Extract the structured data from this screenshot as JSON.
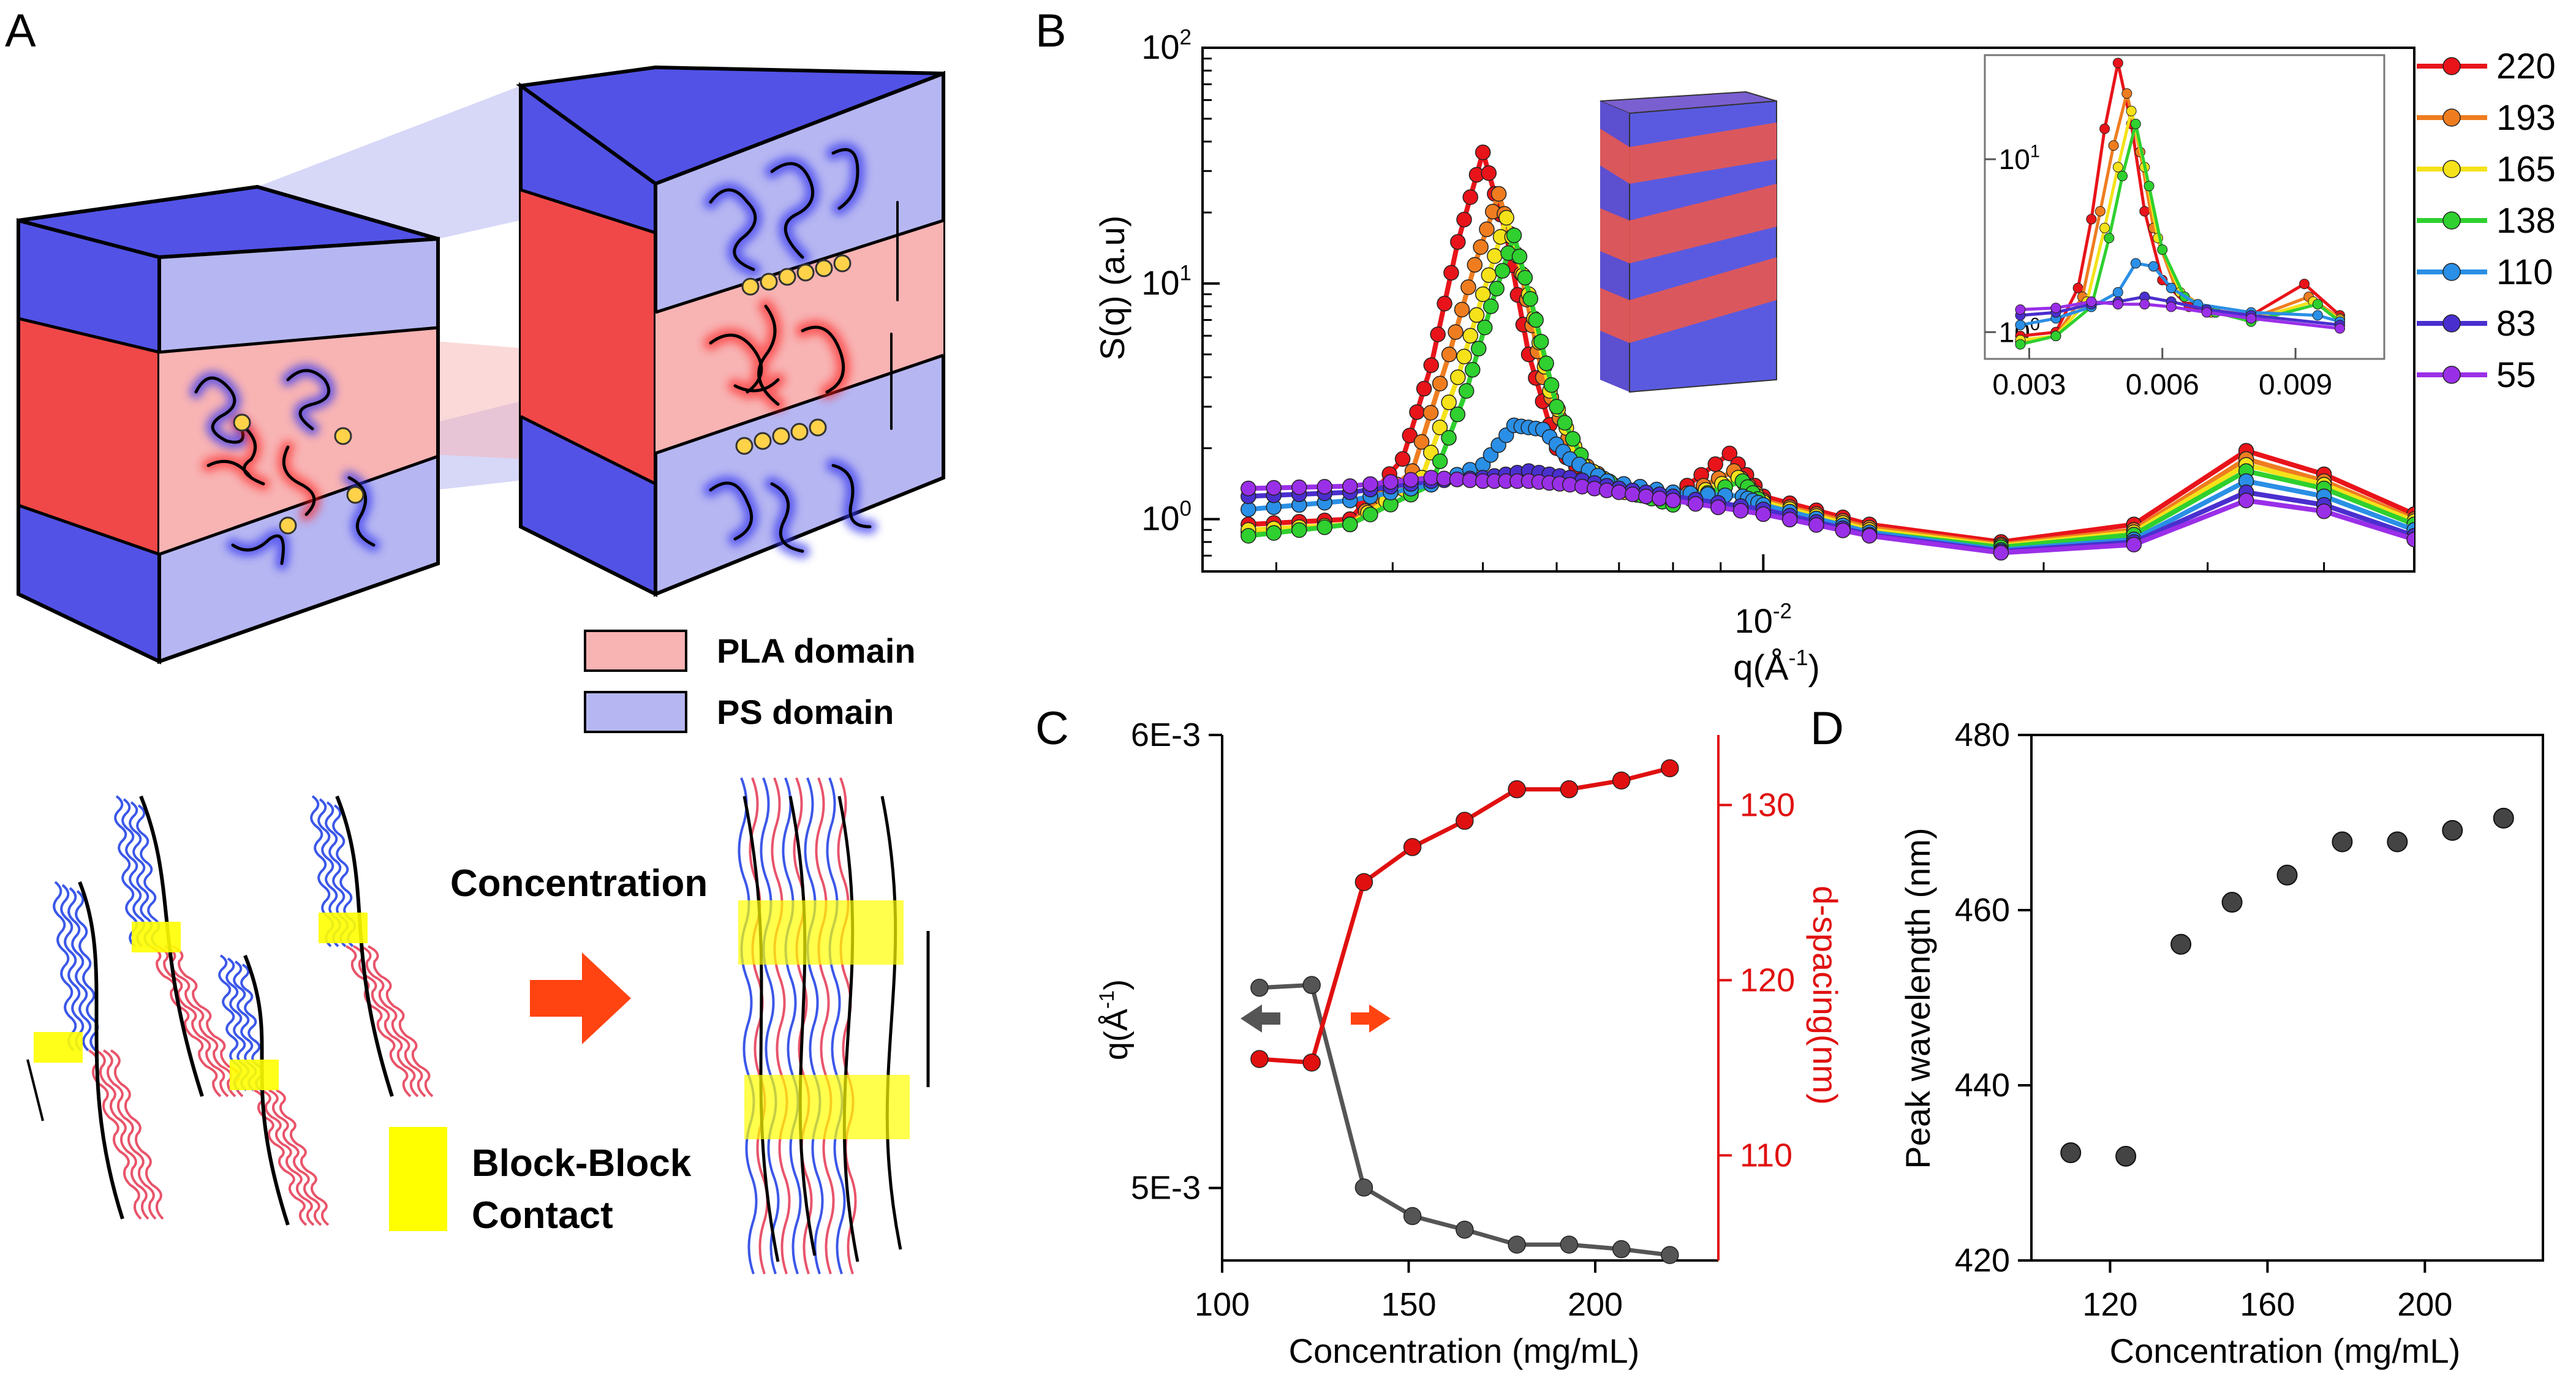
{
  "panels": {
    "A": "A",
    "B": "B",
    "C": "C",
    "D": "D"
  },
  "colors": {
    "pla": "#f8b3b3",
    "ps": "#b6b6f2",
    "ps_face": "#5252e6",
    "pla_face": "#f04848",
    "contact": "#ffff00",
    "arrow": "#ff4411",
    "c_left": "#555555",
    "c_right": "#e01010"
  },
  "panelA": {
    "legend": [
      {
        "label": "PLA domain",
        "color": "#f8b3b3"
      },
      {
        "label": "PS domain",
        "color": "#b6b6f2"
      }
    ],
    "concentration_label": "Concentration",
    "contact_label_line1": "Block-Block",
    "contact_label_line2": "Contact"
  },
  "panelB": {
    "xlabel": "q(Å",
    "xlabel_sup": "-1",
    "xlabel_end": ")",
    "ylabel": "S(q) (a.u)",
    "x_tick": {
      "base": "10",
      "exp": "-2"
    },
    "y_ticks": [
      {
        "base": "10",
        "exp": "2"
      },
      {
        "base": "10",
        "exp": "1"
      },
      {
        "base": "10",
        "exp": "0"
      }
    ],
    "inset_x_ticks": [
      "0.003",
      "0.006",
      "0.009"
    ],
    "inset_y_ticks": [
      {
        "base": "10",
        "exp": "1"
      },
      {
        "base": "10",
        "exp": "0"
      }
    ]
  },
  "chart_data": [
    {
      "type": "line",
      "panel": "B",
      "xscale": "log",
      "yscale": "log",
      "xlim": [
        0.0025,
        0.05
      ],
      "ylim": [
        0.6,
        100
      ],
      "legend_position": "right",
      "series": [
        {
          "name": "220",
          "color": "#e8141a",
          "points": [
            [
              0.0028,
              0.95
            ],
            [
              0.0036,
              1.0
            ],
            [
              0.0041,
              1.8
            ],
            [
              0.0044,
              4.5
            ],
            [
              0.0047,
              15
            ],
            [
              0.005,
              36
            ],
            [
              0.0053,
              16
            ],
            [
              0.0056,
              5
            ],
            [
              0.006,
              2.0
            ],
            [
              0.0066,
              1.4
            ],
            [
              0.008,
              1.25
            ],
            [
              0.0092,
              1.9
            ],
            [
              0.01,
              1.25
            ],
            [
              0.013,
              0.95
            ],
            [
              0.018,
              0.8
            ],
            [
              0.025,
              0.95
            ],
            [
              0.033,
              1.95
            ],
            [
              0.04,
              1.55
            ],
            [
              0.05,
              1.05
            ]
          ]
        },
        {
          "name": "193",
          "color": "#ef7d20",
          "points": [
            [
              0.0028,
              0.88
            ],
            [
              0.0036,
              0.95
            ],
            [
              0.0042,
              1.6
            ],
            [
              0.0046,
              5
            ],
            [
              0.0049,
              12
            ],
            [
              0.0052,
              24
            ],
            [
              0.0055,
              11
            ],
            [
              0.0058,
              4
            ],
            [
              0.0063,
              1.8
            ],
            [
              0.007,
              1.35
            ],
            [
              0.008,
              1.2
            ],
            [
              0.0093,
              1.6
            ],
            [
              0.01,
              1.2
            ],
            [
              0.013,
              0.92
            ],
            [
              0.018,
              0.78
            ],
            [
              0.025,
              0.9
            ],
            [
              0.033,
              1.8
            ],
            [
              0.04,
              1.45
            ],
            [
              0.05,
              1.0
            ]
          ]
        },
        {
          "name": "165",
          "color": "#f5e21a",
          "points": [
            [
              0.0028,
              0.9
            ],
            [
              0.0036,
              0.95
            ],
            [
              0.0043,
              1.5
            ],
            [
              0.0047,
              4
            ],
            [
              0.005,
              9
            ],
            [
              0.0053,
              19
            ],
            [
              0.0056,
              9
            ],
            [
              0.0059,
              3.5
            ],
            [
              0.0064,
              1.7
            ],
            [
              0.0071,
              1.3
            ],
            [
              0.008,
              1.18
            ],
            [
              0.0094,
              1.5
            ],
            [
              0.01,
              1.18
            ],
            [
              0.013,
              0.9
            ],
            [
              0.018,
              0.77
            ],
            [
              0.025,
              0.88
            ],
            [
              0.033,
              1.7
            ],
            [
              0.04,
              1.4
            ],
            [
              0.05,
              0.98
            ]
          ]
        },
        {
          "name": "138",
          "color": "#2fd02f",
          "points": [
            [
              0.0028,
              0.85
            ],
            [
              0.0036,
              0.95
            ],
            [
              0.0044,
              1.4
            ],
            [
              0.0048,
              3.5
            ],
            [
              0.0051,
              8
            ],
            [
              0.0054,
              16
            ],
            [
              0.0057,
              7
            ],
            [
              0.006,
              3
            ],
            [
              0.0065,
              1.6
            ],
            [
              0.0072,
              1.3
            ],
            [
              0.008,
              1.15
            ],
            [
              0.0095,
              1.45
            ],
            [
              0.01,
              1.15
            ],
            [
              0.013,
              0.88
            ],
            [
              0.018,
              0.76
            ],
            [
              0.025,
              0.86
            ],
            [
              0.033,
              1.6
            ],
            [
              0.04,
              1.35
            ],
            [
              0.05,
              0.95
            ]
          ]
        },
        {
          "name": "110",
          "color": "#2a8fe6",
          "points": [
            [
              0.0028,
              1.1
            ],
            [
              0.0036,
              1.2
            ],
            [
              0.0044,
              1.4
            ],
            [
              0.005,
              1.7
            ],
            [
              0.0054,
              2.5
            ],
            [
              0.0058,
              2.4
            ],
            [
              0.0062,
              1.8
            ],
            [
              0.0068,
              1.45
            ],
            [
              0.008,
              1.3
            ],
            [
              0.0095,
              1.25
            ],
            [
              0.01,
              1.15
            ],
            [
              0.013,
              0.88
            ],
            [
              0.018,
              0.74
            ],
            [
              0.025,
              0.82
            ],
            [
              0.033,
              1.45
            ],
            [
              0.04,
              1.25
            ],
            [
              0.05,
              0.9
            ]
          ]
        },
        {
          "name": "83",
          "color": "#4a2fcf",
          "points": [
            [
              0.0028,
              1.25
            ],
            [
              0.0036,
              1.3
            ],
            [
              0.0044,
              1.45
            ],
            [
              0.005,
              1.5
            ],
            [
              0.0056,
              1.6
            ],
            [
              0.0062,
              1.5
            ],
            [
              0.007,
              1.35
            ],
            [
              0.008,
              1.25
            ],
            [
              0.01,
              1.1
            ],
            [
              0.013,
              0.86
            ],
            [
              0.018,
              0.73
            ],
            [
              0.025,
              0.8
            ],
            [
              0.033,
              1.3
            ],
            [
              0.04,
              1.15
            ],
            [
              0.05,
              0.85
            ]
          ]
        },
        {
          "name": "55",
          "color": "#9a2fe8",
          "points": [
            [
              0.0028,
              1.35
            ],
            [
              0.0036,
              1.38
            ],
            [
              0.0044,
              1.5
            ],
            [
              0.005,
              1.45
            ],
            [
              0.0056,
              1.45
            ],
            [
              0.0062,
              1.4
            ],
            [
              0.007,
              1.3
            ],
            [
              0.008,
              1.2
            ],
            [
              0.01,
              1.05
            ],
            [
              0.013,
              0.85
            ],
            [
              0.018,
              0.72
            ],
            [
              0.025,
              0.78
            ],
            [
              0.033,
              1.2
            ],
            [
              0.04,
              1.08
            ],
            [
              0.05,
              0.82
            ]
          ]
        }
      ]
    },
    {
      "type": "line",
      "panel": "C",
      "xlabel": "Concentration (mg/mL)",
      "ylabel_left": "q(Å",
      "ylabel_left_sup": "-1",
      "ylabel_left_end": ")",
      "ylabel_right": "d-spacing(nm)",
      "xlim": [
        100,
        233
      ],
      "ylim_left": [
        0.00484,
        0.006
      ],
      "ylim_right": [
        104,
        134
      ],
      "x_ticks": [
        "100",
        "150",
        "200"
      ],
      "y_ticks_left": [
        "6E-3",
        "5E-3"
      ],
      "y_ticks_right": [
        "130",
        "120",
        "110"
      ],
      "x": [
        110,
        124,
        138,
        151,
        165,
        179,
        193,
        207,
        220
      ],
      "q": [
        0.005442,
        0.005448,
        0.005001,
        0.004938,
        0.004908,
        0.004875,
        0.004875,
        0.004865,
        0.004852
      ],
      "d_spacing": [
        115.5,
        115.3,
        125.6,
        127.6,
        129.1,
        130.9,
        130.9,
        131.4,
        132.1
      ]
    },
    {
      "type": "scatter",
      "panel": "D",
      "xlabel": "Concentration (mg/mL)",
      "ylabel": "Peak wavelength (nm)",
      "xlim": [
        100,
        230
      ],
      "ylim": [
        420,
        480
      ],
      "x_ticks": [
        "120",
        "160",
        "200"
      ],
      "y_ticks": [
        "420",
        "440",
        "460",
        "480"
      ],
      "x": [
        110,
        124,
        138,
        151,
        165,
        179,
        193,
        207,
        220
      ],
      "y": [
        432.3,
        431.9,
        456.1,
        460.9,
        464.0,
        467.8,
        467.8,
        469.1,
        470.5
      ]
    }
  ]
}
